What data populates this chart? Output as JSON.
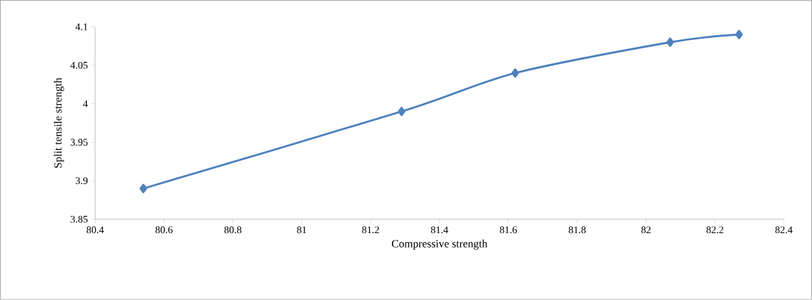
{
  "chart_data": {
    "type": "line",
    "xlabel": "Compressive strength",
    "ylabel": "Split tensile strength",
    "x": [
      80.54,
      81.29,
      81.62,
      82.07,
      82.27
    ],
    "series": [
      {
        "color": "#4f81bd",
        "values": [
          3.89,
          3.99,
          4.04,
          4.08,
          4.09
        ]
      }
    ],
    "xlim": [
      80.4,
      82.4
    ],
    "ylim": [
      3.85,
      4.1
    ],
    "xticks": [
      80.4,
      80.6,
      80.8,
      81,
      81.2,
      81.4,
      81.6,
      81.8,
      82,
      82.2,
      82.4
    ],
    "yticks": [
      3.85,
      3.9,
      3.95,
      4,
      4.05,
      4.1
    ],
    "marker": "diamond",
    "line_style": "solid"
  }
}
